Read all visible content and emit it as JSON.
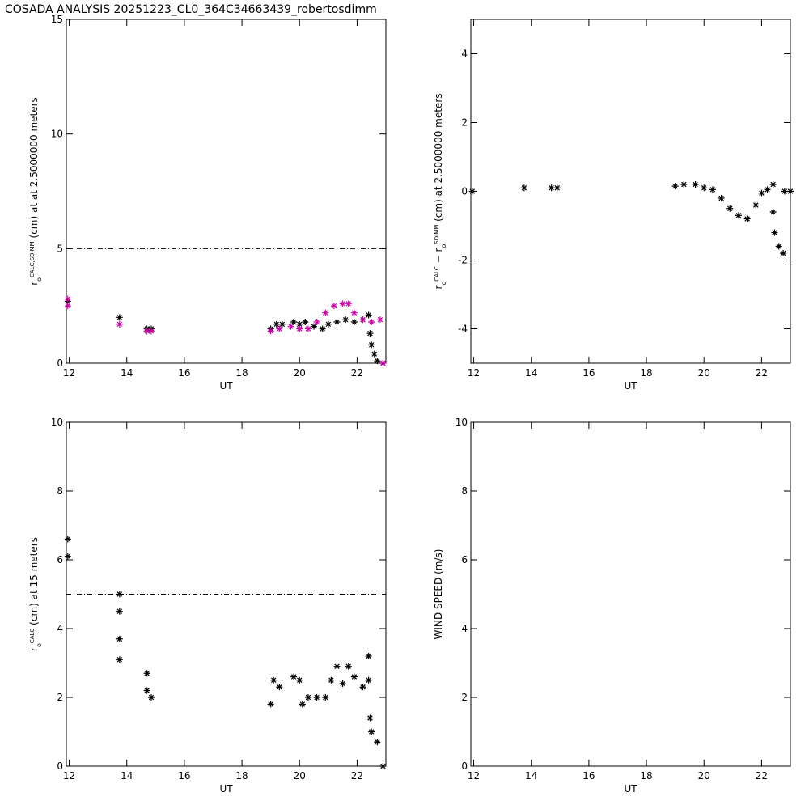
{
  "title": "COSADA ANALYSIS 20251223_CL0_364C34663439_robertosdimm",
  "chart_data": [
    {
      "type": "scatter",
      "xlabel": "UT",
      "xlim": [
        11.9,
        23.0
      ],
      "xticks": [
        12,
        14,
        16,
        18,
        20,
        22
      ],
      "ylim": [
        0,
        15
      ],
      "yticks": [
        0,
        5,
        10,
        15
      ],
      "hline": 5,
      "ylabel": [
        {
          "text": "r"
        },
        {
          "text": "o",
          "pos": "sub"
        },
        {
          "text": "CALC,SDIMM",
          "pos": "sup"
        },
        {
          "text": " (cm) at  at 2.5000000 meters"
        }
      ],
      "series": [
        {
          "color": "#000000",
          "x": [
            11.95,
            13.75,
            14.7,
            14.85,
            19.0,
            19.2,
            19.4,
            19.8,
            20.0,
            20.2,
            20.5,
            20.8,
            21.0,
            21.3,
            21.6,
            21.9,
            22.2,
            22.4,
            22.45,
            22.5,
            22.6,
            22.7,
            22.9
          ],
          "y": [
            2.7,
            2.0,
            1.5,
            1.5,
            1.5,
            1.7,
            1.7,
            1.8,
            1.7,
            1.8,
            1.6,
            1.5,
            1.7,
            1.8,
            1.9,
            1.8,
            1.9,
            2.1,
            1.3,
            0.8,
            0.4,
            0.1,
            0.0
          ]
        },
        {
          "color": "#cc00aa",
          "x": [
            11.95,
            11.95,
            13.75,
            14.7,
            14.85,
            19.0,
            19.3,
            19.7,
            20.0,
            20.3,
            20.6,
            20.9,
            21.2,
            21.5,
            21.7,
            21.9,
            22.2,
            22.5,
            22.8,
            22.9
          ],
          "y": [
            2.8,
            2.5,
            1.7,
            1.4,
            1.4,
            1.4,
            1.5,
            1.6,
            1.5,
            1.5,
            1.8,
            2.2,
            2.5,
            2.6,
            2.6,
            2.2,
            1.9,
            1.8,
            1.9,
            0.0
          ]
        }
      ]
    },
    {
      "type": "scatter",
      "xlabel": "UT",
      "xlim": [
        11.9,
        23.0
      ],
      "xticks": [
        12,
        14,
        16,
        18,
        20,
        22
      ],
      "ylim": [
        -5,
        5
      ],
      "yticks": [
        -4,
        -2,
        0,
        2,
        4
      ],
      "ylabel": [
        {
          "text": "r"
        },
        {
          "text": "o",
          "pos": "sub"
        },
        {
          "text": "CALC",
          "pos": "sup"
        },
        {
          "text": "  − r"
        },
        {
          "text": "o",
          "pos": "sub"
        },
        {
          "text": "SDIMM",
          "pos": "sup"
        },
        {
          "text": " (cm) at 2.5000000 meters"
        }
      ],
      "series": [
        {
          "color": "#000000",
          "x": [
            11.95,
            13.75,
            14.7,
            14.9,
            19.0,
            19.3,
            19.7,
            20.0,
            20.3,
            20.6,
            20.9,
            21.2,
            21.5,
            21.8,
            22.0,
            22.2,
            22.4,
            22.4,
            22.45,
            22.6,
            22.75,
            22.8,
            23.0
          ],
          "y": [
            0,
            0.1,
            0.1,
            0.1,
            0.15,
            0.2,
            0.2,
            0.1,
            0.05,
            -0.2,
            -0.5,
            -0.7,
            -0.8,
            -0.4,
            -0.05,
            0.05,
            0.2,
            -0.6,
            -1.2,
            -1.6,
            -1.8,
            0.0,
            0.0
          ]
        }
      ]
    },
    {
      "type": "scatter",
      "xlabel": "UT",
      "xlim": [
        11.9,
        23.0
      ],
      "xticks": [
        12,
        14,
        16,
        18,
        20,
        22
      ],
      "ylim": [
        0,
        10
      ],
      "yticks": [
        0,
        2,
        4,
        6,
        8,
        10
      ],
      "hline": 5,
      "ylabel": [
        {
          "text": "r"
        },
        {
          "text": "o",
          "pos": "sub"
        },
        {
          "text": "CALC",
          "pos": "sup"
        },
        {
          "text": " (cm) at 15 meters"
        }
      ],
      "series": [
        {
          "color": "#000000",
          "x": [
            11.95,
            11.95,
            13.75,
            13.75,
            13.75,
            13.75,
            14.7,
            14.7,
            14.85,
            19.0,
            19.1,
            19.3,
            19.8,
            20.0,
            20.1,
            20.3,
            20.6,
            20.9,
            21.1,
            21.3,
            21.5,
            21.7,
            21.9,
            22.2,
            22.4,
            22.4,
            22.45,
            22.5,
            22.7,
            22.9
          ],
          "y": [
            6.6,
            6.1,
            5.0,
            4.5,
            3.7,
            3.1,
            2.7,
            2.2,
            2.0,
            1.8,
            2.5,
            2.3,
            2.6,
            2.5,
            1.8,
            2.0,
            2.0,
            2.0,
            2.5,
            2.9,
            2.4,
            2.9,
            2.6,
            2.3,
            3.2,
            2.5,
            1.4,
            1.0,
            0.7,
            0.0
          ]
        }
      ]
    },
    {
      "type": "scatter",
      "xlabel": "UT",
      "xlim": [
        11.9,
        23.0
      ],
      "xticks": [
        12,
        14,
        16,
        18,
        20,
        22
      ],
      "ylim": [
        0,
        10
      ],
      "yticks": [
        0,
        2,
        4,
        6,
        8,
        10
      ],
      "ylabel": [
        {
          "text": "WIND SPEED (m/s)"
        }
      ],
      "series": []
    }
  ]
}
